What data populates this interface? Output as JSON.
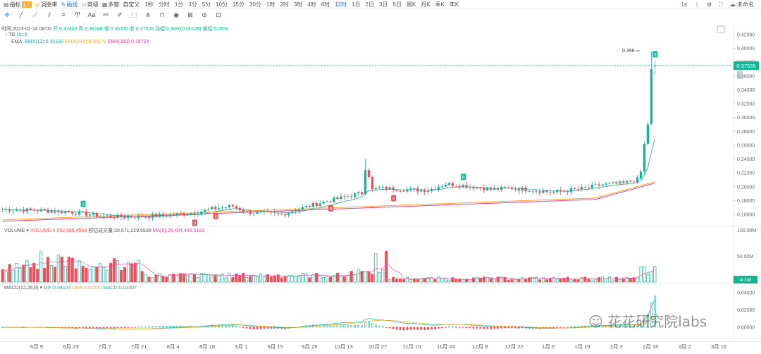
{
  "toolbar": {
    "indicator_label": "指标",
    "indicator_badge": "主力",
    "winrate_label": "涡胜率",
    "drawline_label": "画线",
    "layout_label": "商级",
    "multiwindow_label": "多窗",
    "custom_label": "自定义",
    "periods": [
      "1秒",
      "分时",
      "1分",
      "3分",
      "5分",
      "10分",
      "15分",
      "30分",
      "1时",
      "2时",
      "3时",
      "4时",
      "6时",
      "12时",
      "1日",
      "2日",
      "3日",
      "5日",
      "周K",
      "月K",
      "季K",
      "年K"
    ],
    "active_period": "12时",
    "right_items": [
      "1s",
      "⋮",
      "⚙",
      "⛶",
      "☁ 未命名"
    ]
  },
  "draw_tools": [
    "crosshair",
    "line",
    "ray",
    "channel",
    "text",
    "pen",
    "brush",
    "fib",
    "measure",
    "ruler",
    "lock",
    "trash",
    "eye",
    "settings"
  ],
  "info": {
    "time_label": "时间:2023-02-14 08:00",
    "open_label": "开:0.37400",
    "high_label": "高:0.38188",
    "low_label": "低:0.36150",
    "close_label": "收:0.37526",
    "change_label": "涨幅:0.34%(0.00126)",
    "amp_label": "振幅:5.45%",
    "td_label": "TD",
    "td_value": "Up:9",
    "ema_label": "EMA",
    "ema12": "EMA(12):0.30199",
    "ema144": "EMA(144):0.20170",
    "ema169": "EMA(169):0.19724"
  },
  "volume_info": {
    "title": "VOLUME",
    "volume_value": "VOLUME:4,092,086.4559",
    "turnover_value": "预估成交量:30,571,229.5538",
    "ma_value": "MA(5):26,404,468.5183"
  },
  "macd_info": {
    "title": "MACD(12,26,9)",
    "dif_value": "DIF:0.04154",
    "dea_value": "DEA:0.02500",
    "macd_value": "MACD:0.03307"
  },
  "price_axis": [
    "0.42000",
    "0.40000",
    "0.38000",
    "0.36000",
    "0.34000",
    "0.32000",
    "0.30000",
    "0.28000",
    "0.26000",
    "0.24000",
    "0.22000",
    "0.20000",
    "0.18000",
    "0.16000"
  ],
  "current_price": "0.37526",
  "peak_label": "0.396",
  "volume_axis": [
    "100.00M",
    "50.00M"
  ],
  "volume_current": "4.1M",
  "macd_axis": [
    "0.04000",
    "0.02000",
    "0.00000"
  ],
  "x_axis": [
    "6月 9",
    "6月 23",
    "7月 7",
    "7月 21",
    "8月 4",
    "8月 18",
    "9月 1",
    "9月 15",
    "9月 29",
    "10月 13",
    "10月 27",
    "11月 10",
    "11月 24",
    "12月 8",
    "12月 22",
    "1月 5",
    "1月 19",
    "2月 2",
    "2月 16",
    "3月 2",
    "3月 16"
  ],
  "td_markers": [
    "9",
    "9",
    "9",
    "9",
    "9",
    "9",
    "9"
  ],
  "watermark": "花花研究院labs",
  "colors": {
    "up": "#14b495",
    "down": "#ef4f5c",
    "ema12": "#26a69a",
    "ema144": "#f5a623",
    "ema169": "#e040a0",
    "accent": "#1a73e8"
  }
}
